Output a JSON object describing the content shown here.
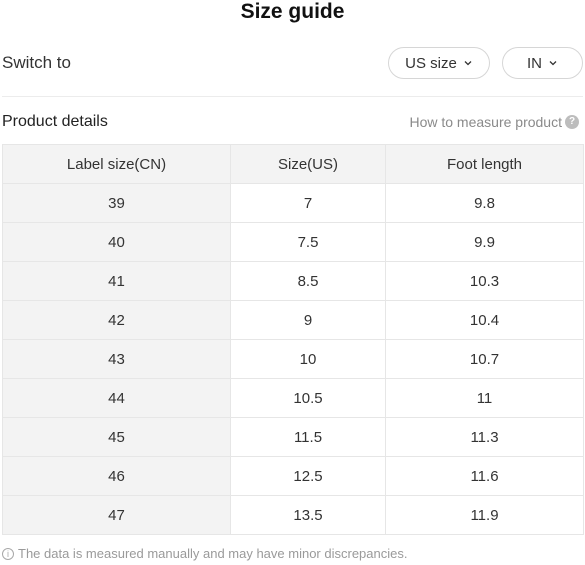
{
  "title": "Size guide",
  "switch": {
    "label": "Switch to",
    "size_system": "US size",
    "unit": "IN"
  },
  "details": {
    "title": "Product details",
    "measure_link": "How to measure product",
    "help_icon_glyph": "?"
  },
  "table": {
    "headers": [
      "Label size(CN)",
      "Size(US)",
      "Foot length"
    ],
    "rows": [
      [
        "39",
        "7",
        "9.8"
      ],
      [
        "40",
        "7.5",
        "9.9"
      ],
      [
        "41",
        "8.5",
        "10.3"
      ],
      [
        "42",
        "9",
        "10.4"
      ],
      [
        "43",
        "10",
        "10.7"
      ],
      [
        "44",
        "10.5",
        "11"
      ],
      [
        "45",
        "11.5",
        "11.3"
      ],
      [
        "46",
        "12.5",
        "11.6"
      ],
      [
        "47",
        "13.5",
        "11.9"
      ]
    ]
  },
  "footnote": {
    "info_icon_glyph": "i",
    "text": "The data is measured manually and may have minor discrepancies."
  },
  "icons": {
    "pill_chevron": "chevron-down-icon",
    "help": "question-circle-icon",
    "info": "info-circle-icon"
  }
}
